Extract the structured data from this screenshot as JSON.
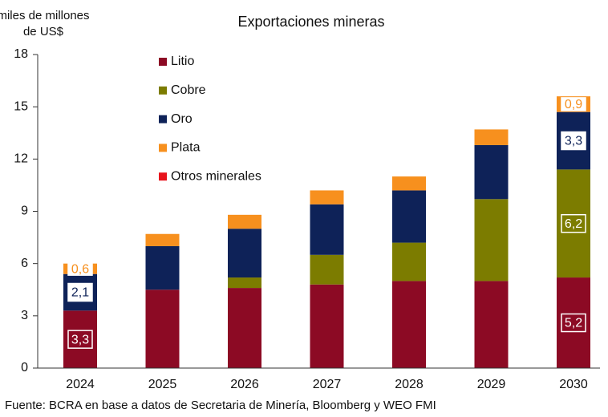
{
  "chart_data": {
    "type": "stacked_bar",
    "title": "Exportaciones mineras",
    "y_label_lines": [
      "miles de millones",
      "de US$"
    ],
    "source": "Fuente: BCRA en base a datos de Secretaria de Minería, Bloomberg y WEO FMI",
    "categories": [
      "2024",
      "2025",
      "2026",
      "2027",
      "2028",
      "2029",
      "2030"
    ],
    "series": [
      {
        "name": "Litio",
        "color": "#8c0a24",
        "values": [
          3.3,
          4.5,
          4.6,
          4.8,
          5.0,
          5.0,
          5.2
        ],
        "value_labels": [
          "3,3",
          null,
          null,
          null,
          null,
          null,
          "5,2"
        ]
      },
      {
        "name": "Cobre",
        "color": "#7c7c00",
        "values": [
          0,
          0,
          0.6,
          1.7,
          2.2,
          4.7,
          6.2
        ],
        "value_labels": [
          null,
          null,
          null,
          null,
          null,
          null,
          "6,2"
        ]
      },
      {
        "name": "Oro",
        "color": "#0e2258",
        "values": [
          2.1,
          2.5,
          2.8,
          2.9,
          3.0,
          3.1,
          3.3
        ],
        "value_labels": [
          "2,1",
          null,
          null,
          null,
          null,
          null,
          "3,3"
        ]
      },
      {
        "name": "Plata",
        "color": "#f7901e",
        "values": [
          0.6,
          0.7,
          0.8,
          0.8,
          0.8,
          0.9,
          0.9
        ],
        "value_labels": [
          "0,6",
          null,
          null,
          null,
          null,
          null,
          "0,9"
        ]
      },
      {
        "name": "Otros minerales",
        "color": "#e8141c",
        "values": [
          0,
          0,
          0,
          0,
          0,
          0,
          0
        ]
      }
    ],
    "ylim": [
      0,
      18
    ],
    "yticks": [
      0,
      3,
      6,
      9,
      12,
      15,
      18
    ],
    "legend": "upper-left"
  }
}
